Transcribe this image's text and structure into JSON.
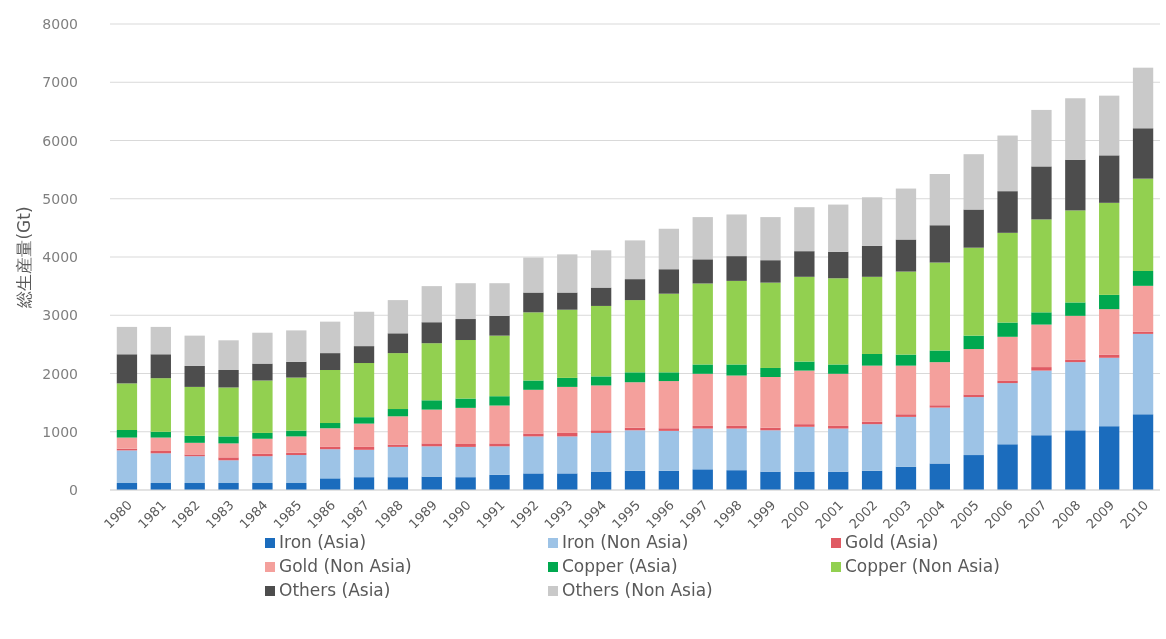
{
  "chart_data": {
    "type": "bar",
    "stacked": true,
    "ylabel": "総生産量(Gt)",
    "categories": [
      "1980",
      "1981",
      "1982",
      "1983",
      "1984",
      "1985",
      "1986",
      "1987",
      "1988",
      "1989",
      "1990",
      "1991",
      "1992",
      "1993",
      "1994",
      "1995",
      "1996",
      "1997",
      "1998",
      "1999",
      "2000",
      "2001",
      "2002",
      "2003",
      "2004",
      "2005",
      "2006",
      "2007",
      "2008",
      "2009",
      "2010"
    ],
    "ylim": [
      0,
      8000
    ],
    "yticks": [
      0,
      1000,
      2000,
      3000,
      4000,
      5000,
      6000,
      7000,
      8000
    ],
    "grid": "y",
    "legend": "bottom",
    "series": [
      {
        "name": "Iron (Asia)",
        "color": "#1b6cbd",
        "values": [
          120,
          120,
          120,
          120,
          120,
          120,
          200,
          220,
          220,
          230,
          220,
          260,
          285,
          285,
          315,
          330,
          330,
          355,
          340,
          315,
          315,
          315,
          330,
          400,
          455,
          600,
          785,
          940,
          1025,
          1095,
          1300
        ]
      },
      {
        "name": "Iron (Non Asia)",
        "color": "#9dc3e6",
        "values": [
          560,
          510,
          460,
          390,
          460,
          480,
          500,
          470,
          520,
          520,
          520,
          490,
          635,
          635,
          665,
          695,
          685,
          700,
          715,
          710,
          770,
          740,
          800,
          855,
          960,
          995,
          1050,
          1110,
          1170,
          1175,
          1380
        ]
      },
      {
        "name": "Gold (Asia)",
        "color": "#e05a63",
        "values": [
          30,
          40,
          30,
          50,
          40,
          40,
          40,
          50,
          40,
          50,
          50,
          50,
          50,
          60,
          45,
          45,
          45,
          45,
          45,
          45,
          45,
          45,
          40,
          45,
          40,
          45,
          45,
          60,
          45,
          55,
          40
        ]
      },
      {
        "name": "Gold (Non Asia)",
        "color": "#f4a09c",
        "values": [
          190,
          230,
          200,
          240,
          260,
          280,
          320,
          400,
          485,
          580,
          620,
          650,
          750,
          790,
          770,
          780,
          810,
          895,
          865,
          870,
          920,
          895,
          965,
          835,
          740,
          780,
          750,
          730,
          750,
          780,
          785
        ]
      },
      {
        "name": "Copper (Asia)",
        "color": "#00a84f",
        "values": [
          130,
          100,
          120,
          120,
          100,
          100,
          90,
          110,
          125,
          160,
          160,
          160,
          160,
          155,
          155,
          170,
          150,
          160,
          190,
          155,
          155,
          160,
          200,
          190,
          200,
          230,
          245,
          210,
          230,
          245,
          255
        ]
      },
      {
        "name": "Copper (Non Asia)",
        "color": "#92d050",
        "values": [
          800,
          920,
          840,
          840,
          900,
          910,
          910,
          930,
          960,
          980,
          1005,
          1040,
          1170,
          1170,
          1210,
          1240,
          1350,
          1390,
          1435,
          1465,
          1455,
          1480,
          1325,
          1425,
          1510,
          1510,
          1540,
          1595,
          1580,
          1580,
          1585
        ]
      },
      {
        "name": "Others (Asia)",
        "color": "#4d4d4d",
        "values": [
          500,
          410,
          360,
          300,
          290,
          270,
          290,
          290,
          340,
          360,
          360,
          340,
          340,
          295,
          315,
          360,
          420,
          415,
          425,
          385,
          440,
          455,
          530,
          550,
          640,
          655,
          715,
          910,
          870,
          815,
          865
        ]
      },
      {
        "name": "Others (Non Asia)",
        "color": "#c9c9c9",
        "values": [
          470,
          470,
          520,
          510,
          530,
          540,
          540,
          590,
          570,
          620,
          615,
          560,
          600,
          655,
          640,
          665,
          695,
          725,
          715,
          740,
          755,
          810,
          835,
          875,
          880,
          950,
          955,
          970,
          1055,
          1025,
          1040
        ]
      }
    ]
  }
}
